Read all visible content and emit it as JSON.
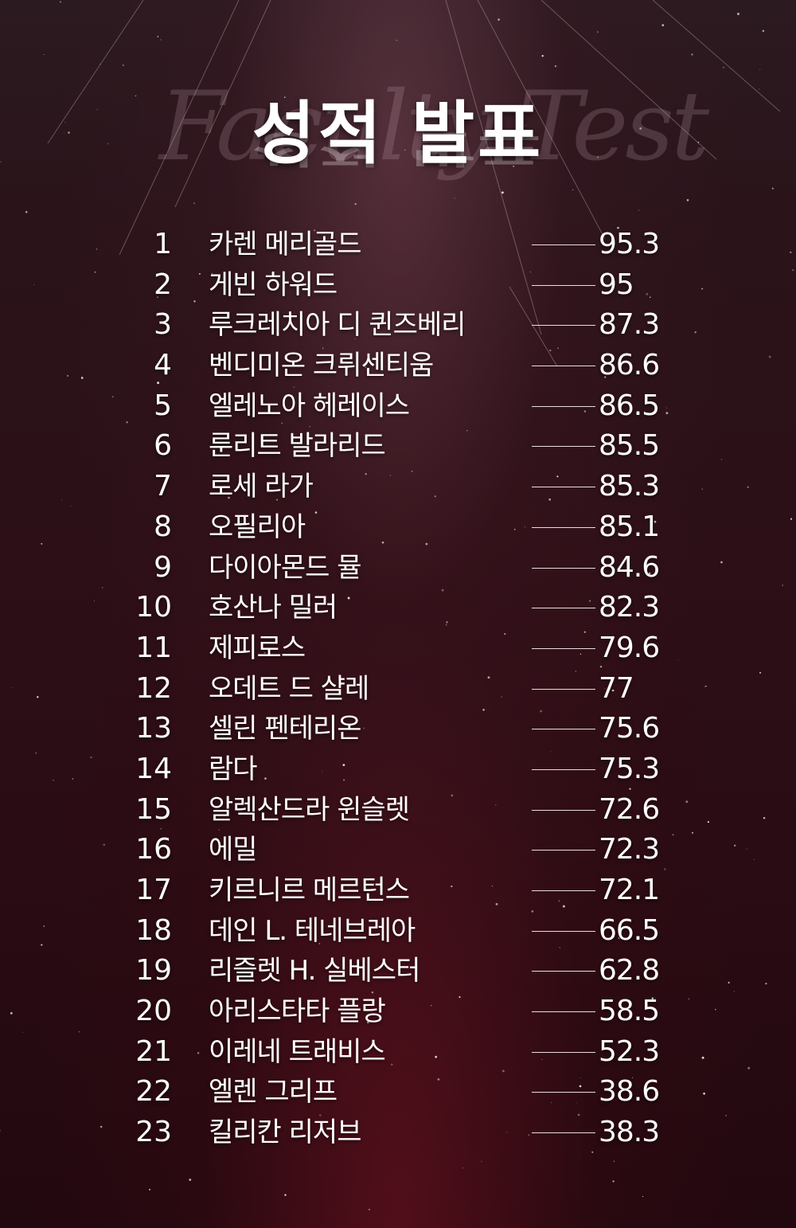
{
  "title": "성적 발표",
  "decorative_script": "Faculty Test",
  "rankings": [
    {
      "rank": "1",
      "name": "카렌 메리골드",
      "score": "95.3"
    },
    {
      "rank": "2",
      "name": "게빈 하워드",
      "score": "95"
    },
    {
      "rank": "3",
      "name": "루크레치아 디 퀸즈베리",
      "score": "87.3"
    },
    {
      "rank": "4",
      "name": "벤디미온 크뤼센티움",
      "score": "86.6"
    },
    {
      "rank": "5",
      "name": "엘레노아 헤레이스",
      "score": "86.5"
    },
    {
      "rank": "6",
      "name": "룬리트 발라리드",
      "score": "85.5"
    },
    {
      "rank": "7",
      "name": "로세 라가",
      "score": "85.3"
    },
    {
      "rank": "8",
      "name": "오필리아",
      "score": "85.1"
    },
    {
      "rank": "9",
      "name": "다이아몬드 뮬",
      "score": "84.6"
    },
    {
      "rank": "10",
      "name": "호산나 밀러",
      "score": "82.3"
    },
    {
      "rank": "11",
      "name": "제피로스",
      "score": "79.6"
    },
    {
      "rank": "12",
      "name": "오데트 드 샬레",
      "score": "77"
    },
    {
      "rank": "13",
      "name": "셀린 펜테리온",
      "score": "75.6"
    },
    {
      "rank": "14",
      "name": "람다",
      "score": "75.3"
    },
    {
      "rank": "15",
      "name": "알렉산드라 윈슬렛",
      "score": "72.6"
    },
    {
      "rank": "16",
      "name": "에밀",
      "score": "72.3"
    },
    {
      "rank": "17",
      "name": "키르니르 메르턴스",
      "score": "72.1"
    },
    {
      "rank": "18",
      "name": "데인 L. 테네브레아",
      "score": "66.5"
    },
    {
      "rank": "19",
      "name": "리즐렛 H. 실베스터",
      "score": "62.8"
    },
    {
      "rank": "20",
      "name": "아리스타타 플랑",
      "score": "58.5"
    },
    {
      "rank": "21",
      "name": "이레네 트래비스",
      "score": "52.3"
    },
    {
      "rank": "22",
      "name": "엘렌 그리프",
      "score": "38.6"
    },
    {
      "rank": "23",
      "name": "킬리칸 리저브",
      "score": "38.3"
    }
  ],
  "colors": {
    "background_top": "#2b1a20",
    "background_bottom": "#22080f",
    "text": "#ffffff",
    "dash_line": "#e9dde0"
  }
}
